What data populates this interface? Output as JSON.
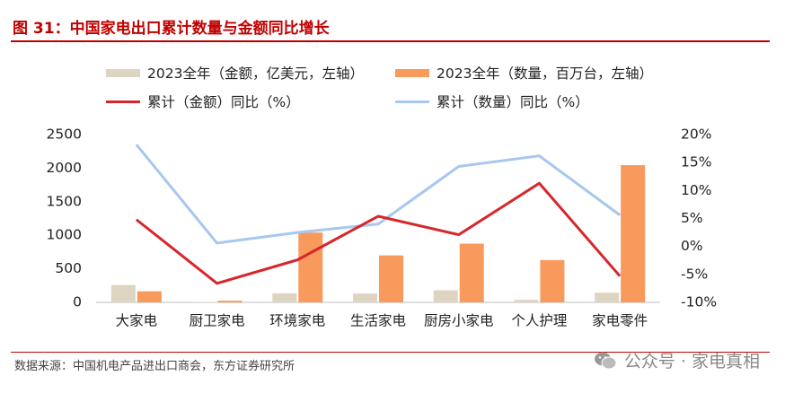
{
  "header": {
    "title": "图 31：中国家电出口累计数量与金额同比增长"
  },
  "legend": {
    "bar_amount": "2023全年（金额，亿美元，左轴）",
    "bar_qty": "2023全年（数量，百万台，左轴）",
    "line_amount": "累计（金额）同比（%）",
    "line_qty": "累计（数量）同比（%）"
  },
  "footer": {
    "source": "数据来源：中国机电产品进出口商会，东方证券研究所",
    "watermark": "公众号 · 家电真相"
  },
  "colors": {
    "bar_amount": "#ddd5c2",
    "bar_qty": "#f89a5c",
    "line_amount": "#d7262b",
    "line_qty": "#a7c7ef",
    "title": "#c00000"
  },
  "chart_data": {
    "type": "bar",
    "categories": [
      "大家电",
      "厨卫家电",
      "环境家电",
      "生活家电",
      "厨房小家电",
      "个人护理",
      "家电零件"
    ],
    "series": [
      {
        "name": "2023全年（金额，亿美元，左轴）",
        "type": "bar",
        "axis": "left",
        "values": [
          258,
          8,
          135,
          132,
          180,
          38,
          145
        ]
      },
      {
        "name": "2023全年（数量，百万台，左轴）",
        "type": "bar",
        "axis": "left",
        "values": [
          165,
          25,
          1040,
          700,
          875,
          630,
          2045
        ]
      },
      {
        "name": "累计（金额）同比（%）",
        "type": "line",
        "axis": "right",
        "values": [
          4.8,
          -6.6,
          -2.4,
          5.4,
          2.1,
          11.3,
          -5.3
        ]
      },
      {
        "name": "累计（数量）同比（%）",
        "type": "line",
        "axis": "right",
        "values": [
          18.2,
          0.6,
          2.5,
          4.0,
          14.3,
          16.2,
          5.6
        ]
      }
    ],
    "y_left": {
      "ticks": [
        "0",
        "500",
        "1000",
        "1500",
        "2000",
        "2500"
      ],
      "ylim": [
        0,
        2500
      ]
    },
    "y_right": {
      "ticks": [
        "-10%",
        "-5%",
        "0%",
        "5%",
        "10%",
        "15%",
        "20%"
      ],
      "ylim": [
        -10,
        20
      ]
    },
    "grid": false,
    "legend_position": "top"
  }
}
